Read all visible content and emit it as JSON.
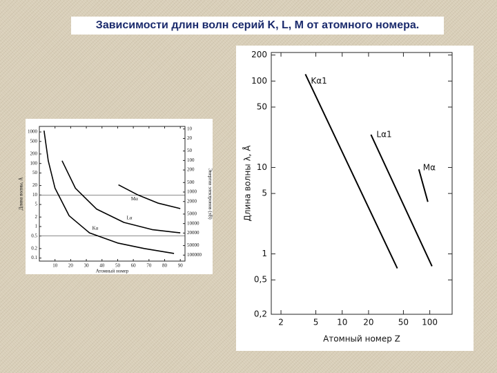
{
  "title": "Зависимости длин волн серий K, L, M от атомного номера.",
  "chart_data": [
    {
      "type": "line",
      "xscale": "linear",
      "yscale": "log",
      "y2scale": "log",
      "ylabel": "Длина волны, Å",
      "xlabel": "Атомный номер",
      "y2label": "Энергия электронов (эВ)",
      "xlim": [
        0,
        93
      ],
      "xticks": [
        10,
        20,
        30,
        40,
        50,
        60,
        70,
        80,
        90
      ],
      "ylim": [
        0.08,
        1500
      ],
      "yticks": [
        1000,
        500,
        200,
        100,
        50,
        20,
        10,
        5,
        2,
        1,
        0.5,
        0.2,
        0.1
      ],
      "y2lim": [
        155000,
        8.3
      ],
      "y2ticks": [
        10,
        20,
        50,
        100,
        200,
        500,
        1000,
        2000,
        5000,
        10000,
        20000,
        50000,
        100000
      ],
      "color": "#000000",
      "series": [
        {
          "name": "Kα",
          "x": [
            3,
            5.7,
            10,
            19,
            32,
            50,
            67,
            86
          ],
          "values": [
            1100,
            122,
            16.5,
            2.2,
            0.63,
            0.3,
            0.2,
            0.14
          ]
        },
        {
          "name": "Lα",
          "x": [
            14.5,
            23,
            36.5,
            54,
            72,
            90
          ],
          "values": [
            122,
            16.5,
            3.6,
            1.35,
            0.8,
            0.63
          ]
        },
        {
          "name": "Mα",
          "x": [
            50.5,
            63,
            76,
            90
          ],
          "values": [
            21,
            10,
            5.5,
            3.7
          ]
        }
      ]
    },
    {
      "type": "line",
      "xscale": "log",
      "yscale": "log",
      "ylabel": "Длина волны λ, Å",
      "xlabel": "Атомный номер Z",
      "xlim": [
        1.55,
        180
      ],
      "xticks": [
        2,
        5,
        10,
        20,
        50,
        100
      ],
      "ylim": [
        0.2,
        214
      ],
      "yticks": [
        200,
        100,
        50,
        10,
        5,
        1,
        {
          "value": 0.5,
          "label": "0,5"
        },
        {
          "value": 0.2,
          "label": "0,2"
        }
      ],
      "color": "#000000",
      "series": [
        {
          "name": "Kα1",
          "x": [
            3.8,
            42.6
          ],
          "values": [
            120,
            0.68
          ]
        },
        {
          "name": "Lα1",
          "x": [
            21.3,
            106
          ],
          "values": [
            24,
            0.72
          ]
        },
        {
          "name": "Mα",
          "x": [
            75,
            95
          ],
          "values": [
            9.5,
            4.0
          ]
        }
      ]
    }
  ]
}
